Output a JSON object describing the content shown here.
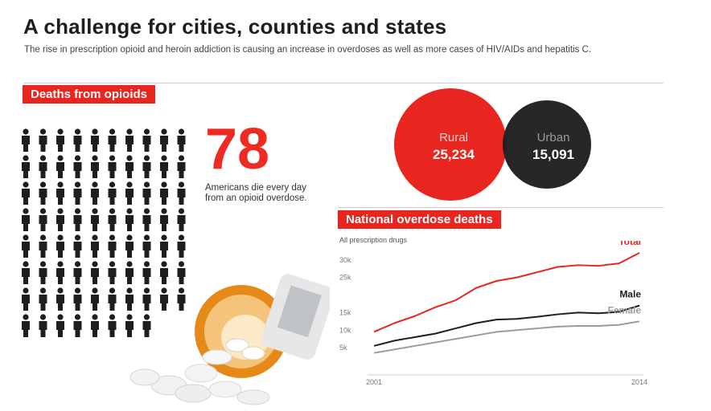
{
  "header": {
    "title": "A challenge for cities, counties and states",
    "subtitle": "The rise in prescription opioid and heroin addiction is causing an increase in overdoses as well as more cases of HIV/AIDs and hepatitis C."
  },
  "deaths": {
    "tag": "Deaths from opioids",
    "number": "78",
    "caption": "Americans die every day from an opioid overdose.",
    "icon": "person-icon",
    "icon_count": 78
  },
  "venn": {
    "rural": {
      "label": "Rural",
      "value": "25,234",
      "color": "#e8251f"
    },
    "urban": {
      "label": "Urban",
      "value": "15,091",
      "color": "#222222"
    }
  },
  "overdose": {
    "tag": "National overdose deaths",
    "subtitle": "All prescription drugs"
  },
  "colors": {
    "accent": "#e8251f",
    "dark": "#1e1e1e",
    "grey": "#9a9a9a"
  },
  "chart_data": {
    "type": "line",
    "title": "National overdose deaths",
    "subtitle": "All prescription drugs",
    "x": [
      2001,
      2002,
      2003,
      2004,
      2005,
      2006,
      2007,
      2008,
      2009,
      2010,
      2011,
      2012,
      2013,
      2014
    ],
    "xticks": [
      "2001",
      "2014"
    ],
    "yticks": [
      "5k",
      "10k",
      "15k",
      "25k",
      "30k"
    ],
    "ylim": [
      0,
      32000
    ],
    "grid": false,
    "series": [
      {
        "name": "Total",
        "color": "#e8251f",
        "values": [
          9500,
          12000,
          14000,
          16500,
          18500,
          22000,
          24000,
          25000,
          26500,
          28000,
          28500,
          28300,
          29000,
          32000
        ]
      },
      {
        "name": "Male",
        "color": "#1e1e1e",
        "values": [
          5500,
          7000,
          8000,
          9000,
          10500,
          12000,
          13000,
          13200,
          13800,
          14500,
          15000,
          14800,
          15200,
          17000
        ]
      },
      {
        "name": "Female",
        "color": "#9a9a9a",
        "values": [
          3500,
          4500,
          5500,
          6500,
          7500,
          8500,
          9500,
          10000,
          10500,
          11000,
          11200,
          11200,
          11500,
          12500
        ]
      }
    ]
  }
}
